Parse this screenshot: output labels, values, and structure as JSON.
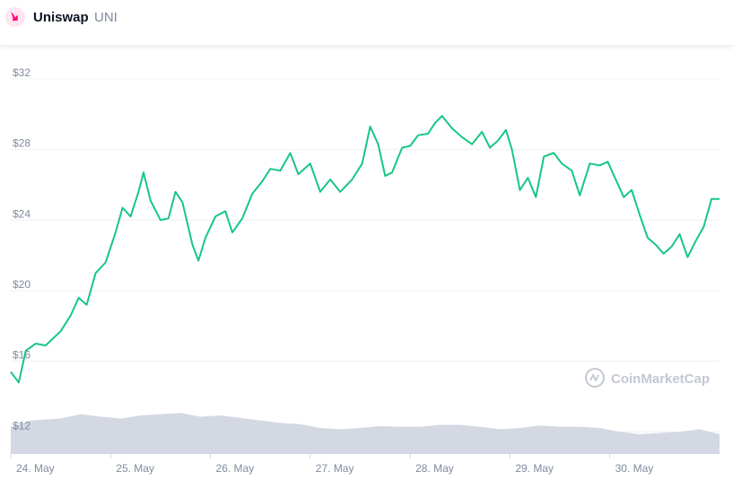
{
  "header": {
    "name": "Uniswap",
    "symbol": "UNI"
  },
  "watermark": "CoinMarketCap",
  "colors": {
    "price_line": "#16c784",
    "volume_fill": "#d3d8e2",
    "grid": "#eef0f3",
    "tick_text": "#808a9d"
  },
  "chart_data": {
    "type": "line",
    "title": "",
    "xlabel": "",
    "ylabel": "",
    "y_ticks": [
      "$12",
      "$16",
      "$20",
      "$24",
      "$28",
      "$32"
    ],
    "ylim": [
      10.8,
      32.4
    ],
    "x_ticks": [
      "24. May",
      "25. May",
      "26. May",
      "27. May",
      "28. May",
      "29. May",
      "30. May"
    ],
    "xlim": [
      0,
      7.1
    ],
    "series": [
      {
        "points": [
          [
            0.0,
            15.4
          ],
          [
            0.08,
            14.8
          ],
          [
            0.15,
            16.6
          ],
          [
            0.25,
            17.0
          ],
          [
            0.35,
            16.9
          ],
          [
            0.5,
            17.7
          ],
          [
            0.6,
            18.6
          ],
          [
            0.68,
            19.6
          ],
          [
            0.76,
            19.2
          ],
          [
            0.85,
            21.0
          ],
          [
            0.95,
            21.6
          ],
          [
            1.05,
            23.3
          ],
          [
            1.12,
            24.7
          ],
          [
            1.2,
            24.2
          ],
          [
            1.28,
            25.6
          ],
          [
            1.33,
            26.7
          ],
          [
            1.4,
            25.1
          ],
          [
            1.5,
            24.0
          ],
          [
            1.58,
            24.1
          ],
          [
            1.65,
            25.6
          ],
          [
            1.72,
            25.0
          ],
          [
            1.82,
            22.6
          ],
          [
            1.88,
            21.7
          ],
          [
            1.95,
            23.0
          ],
          [
            2.05,
            24.2
          ],
          [
            2.15,
            24.5
          ],
          [
            2.22,
            23.3
          ],
          [
            2.32,
            24.1
          ],
          [
            2.42,
            25.5
          ],
          [
            2.52,
            26.2
          ],
          [
            2.6,
            26.9
          ],
          [
            2.7,
            26.8
          ],
          [
            2.8,
            27.8
          ],
          [
            2.88,
            26.6
          ],
          [
            3.0,
            27.2
          ],
          [
            3.1,
            25.6
          ],
          [
            3.2,
            26.3
          ],
          [
            3.3,
            25.6
          ],
          [
            3.42,
            26.3
          ],
          [
            3.52,
            27.2
          ],
          [
            3.6,
            29.3
          ],
          [
            3.68,
            28.3
          ],
          [
            3.75,
            26.5
          ],
          [
            3.82,
            26.7
          ],
          [
            3.92,
            28.1
          ],
          [
            4.0,
            28.2
          ],
          [
            4.08,
            28.8
          ],
          [
            4.18,
            28.9
          ],
          [
            4.25,
            29.5
          ],
          [
            4.32,
            29.9
          ],
          [
            4.42,
            29.2
          ],
          [
            4.52,
            28.7
          ],
          [
            4.62,
            28.3
          ],
          [
            4.72,
            29.0
          ],
          [
            4.8,
            28.1
          ],
          [
            4.88,
            28.5
          ],
          [
            4.96,
            29.1
          ],
          [
            5.02,
            28.0
          ],
          [
            5.1,
            25.7
          ],
          [
            5.18,
            26.4
          ],
          [
            5.26,
            25.3
          ],
          [
            5.34,
            27.6
          ],
          [
            5.44,
            27.8
          ],
          [
            5.52,
            27.2
          ],
          [
            5.62,
            26.8
          ],
          [
            5.7,
            25.4
          ],
          [
            5.8,
            27.2
          ],
          [
            5.9,
            27.1
          ],
          [
            5.98,
            27.3
          ],
          [
            6.06,
            26.3
          ],
          [
            6.14,
            25.3
          ],
          [
            6.22,
            25.7
          ],
          [
            6.3,
            24.3
          ],
          [
            6.38,
            23.0
          ],
          [
            6.46,
            22.6
          ],
          [
            6.54,
            22.1
          ],
          [
            6.62,
            22.5
          ],
          [
            6.7,
            23.2
          ],
          [
            6.78,
            21.9
          ],
          [
            6.86,
            22.8
          ],
          [
            6.94,
            23.6
          ],
          [
            7.02,
            25.2
          ],
          [
            7.1,
            25.2
          ]
        ]
      }
    ],
    "volume": [
      [
        0.0,
        0.42
      ],
      [
        0.2,
        0.52
      ],
      [
        0.5,
        0.55
      ],
      [
        0.7,
        0.62
      ],
      [
        0.9,
        0.58
      ],
      [
        1.1,
        0.55
      ],
      [
        1.3,
        0.6
      ],
      [
        1.5,
        0.62
      ],
      [
        1.7,
        0.64
      ],
      [
        1.9,
        0.58
      ],
      [
        2.1,
        0.6
      ],
      [
        2.3,
        0.56
      ],
      [
        2.5,
        0.52
      ],
      [
        2.7,
        0.48
      ],
      [
        2.9,
        0.46
      ],
      [
        3.1,
        0.4
      ],
      [
        3.3,
        0.38
      ],
      [
        3.5,
        0.4
      ],
      [
        3.7,
        0.43
      ],
      [
        3.9,
        0.42
      ],
      [
        4.1,
        0.42
      ],
      [
        4.3,
        0.45
      ],
      [
        4.5,
        0.45
      ],
      [
        4.7,
        0.42
      ],
      [
        4.9,
        0.38
      ],
      [
        5.1,
        0.4
      ],
      [
        5.3,
        0.44
      ],
      [
        5.5,
        0.42
      ],
      [
        5.7,
        0.42
      ],
      [
        5.9,
        0.4
      ],
      [
        6.1,
        0.34
      ],
      [
        6.3,
        0.3
      ],
      [
        6.5,
        0.32
      ],
      [
        6.7,
        0.34
      ],
      [
        6.9,
        0.38
      ],
      [
        7.1,
        0.3
      ]
    ]
  }
}
